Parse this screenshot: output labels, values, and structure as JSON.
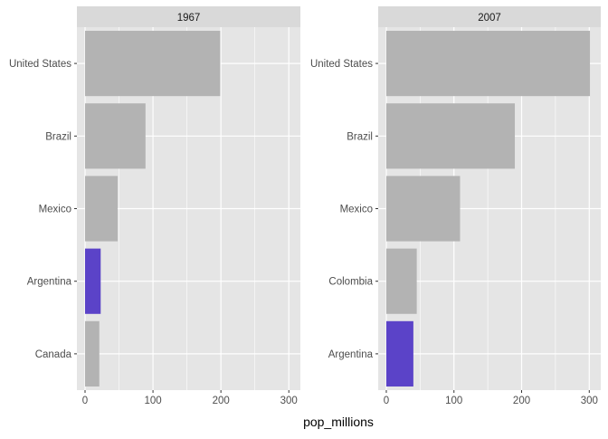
{
  "chart_data": {
    "type": "bar",
    "orientation": "horizontal",
    "xlabel": "pop_millions",
    "ylabel": "",
    "xlim": [
      -12,
      317
    ],
    "xticks": [
      0,
      100,
      200,
      300
    ],
    "grid": true,
    "legend": "none",
    "colors": {
      "default": "#b3b3b3",
      "highlight": "#5b43c8",
      "panel_bg": "#e5e5e5",
      "strip_bg": "#d9d9d9",
      "grid": "#ffffff"
    },
    "panels": [
      {
        "title": "1967",
        "bars": [
          {
            "category": "United States",
            "value": 199,
            "highlight": false
          },
          {
            "category": "Brazil",
            "value": 89,
            "highlight": false
          },
          {
            "category": "Mexico",
            "value": 48,
            "highlight": false
          },
          {
            "category": "Argentina",
            "value": 23,
            "highlight": true
          },
          {
            "category": "Canada",
            "value": 21,
            "highlight": false
          }
        ]
      },
      {
        "title": "2007",
        "bars": [
          {
            "category": "United States",
            "value": 301,
            "highlight": false
          },
          {
            "category": "Brazil",
            "value": 190,
            "highlight": false
          },
          {
            "category": "Mexico",
            "value": 109,
            "highlight": false
          },
          {
            "category": "Colombia",
            "value": 45,
            "highlight": false
          },
          {
            "category": "Argentina",
            "value": 40,
            "highlight": true
          }
        ]
      }
    ]
  }
}
